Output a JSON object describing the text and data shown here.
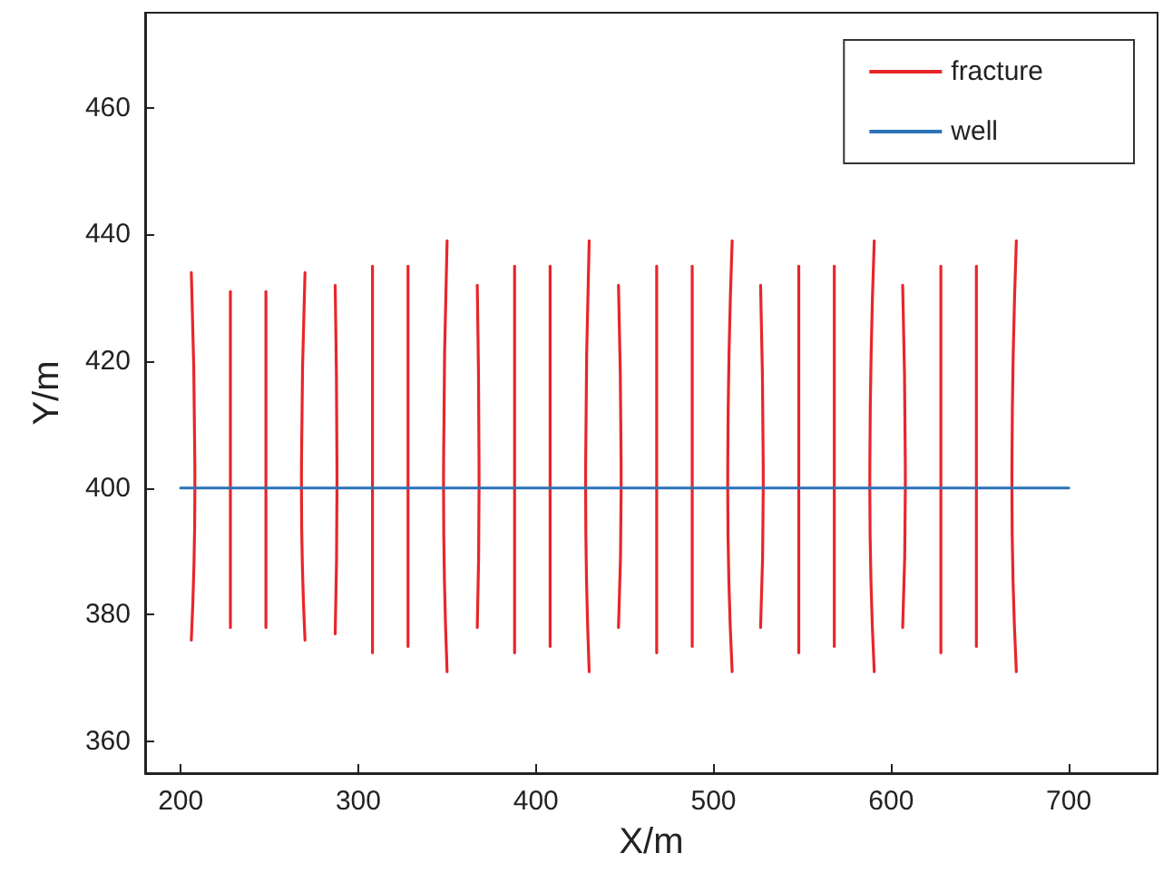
{
  "chart_data": {
    "type": "line",
    "xlabel": "X/m",
    "ylabel": "Y/m",
    "xlim": [
      180,
      750
    ],
    "ylim": [
      355,
      475
    ],
    "xticks": [
      200,
      300,
      400,
      500,
      600,
      700
    ],
    "yticks": [
      360,
      380,
      400,
      420,
      440,
      460
    ],
    "grid": false,
    "legend": "top right",
    "marker": "none",
    "line_style": "solid",
    "series": [
      {
        "name": "fracture",
        "color": "#e8262a",
        "x": [
          206,
          208,
          206
        ],
        "values": [
          434,
          400,
          376
        ]
      },
      {
        "color": "#e8262a",
        "x": [
          228,
          228,
          228
        ],
        "values": [
          431,
          400,
          378
        ]
      },
      {
        "color": "#e8262a",
        "x": [
          248,
          248,
          248
        ],
        "values": [
          431,
          400,
          378
        ]
      },
      {
        "color": "#e8262a",
        "x": [
          270,
          268,
          270
        ],
        "values": [
          434,
          400,
          376
        ]
      },
      {
        "color": "#e8262a",
        "x": [
          287,
          288,
          287
        ],
        "values": [
          432,
          400,
          377
        ]
      },
      {
        "color": "#e8262a",
        "x": [
          308,
          308,
          308
        ],
        "values": [
          435,
          400,
          374
        ]
      },
      {
        "color": "#e8262a",
        "x": [
          328,
          328,
          328
        ],
        "values": [
          435,
          400,
          375
        ]
      },
      {
        "color": "#e8262a",
        "x": [
          350,
          348,
          350
        ],
        "values": [
          439,
          400,
          371
        ]
      },
      {
        "color": "#e8262a",
        "x": [
          367,
          368,
          367
        ],
        "values": [
          432,
          400,
          378
        ]
      },
      {
        "color": "#e8262a",
        "x": [
          388,
          388,
          388
        ],
        "values": [
          435,
          400,
          374
        ]
      },
      {
        "color": "#e8262a",
        "x": [
          408,
          408,
          408
        ],
        "values": [
          435,
          400,
          375
        ]
      },
      {
        "color": "#e8262a",
        "x": [
          430,
          428,
          430
        ],
        "values": [
          439,
          400,
          371
        ]
      },
      {
        "color": "#e8262a",
        "x": [
          446.5,
          448,
          446.5
        ],
        "values": [
          432,
          400,
          378
        ]
      },
      {
        "color": "#e8262a",
        "x": [
          468,
          468,
          468
        ],
        "values": [
          435,
          400,
          374
        ]
      },
      {
        "color": "#e8262a",
        "x": [
          488,
          488,
          488
        ],
        "values": [
          435,
          400,
          375
        ]
      },
      {
        "color": "#e8262a",
        "x": [
          510.5,
          508,
          510.5
        ],
        "values": [
          439,
          400,
          371
        ]
      },
      {
        "color": "#e8262a",
        "x": [
          526.5,
          528,
          526.5
        ],
        "values": [
          432,
          400,
          378
        ]
      },
      {
        "color": "#e8262a",
        "x": [
          548,
          548,
          548
        ],
        "values": [
          435,
          400,
          374
        ]
      },
      {
        "color": "#e8262a",
        "x": [
          568,
          568,
          568
        ],
        "values": [
          435,
          400,
          375
        ]
      },
      {
        "color": "#e8262a",
        "x": [
          590.5,
          588,
          590.5
        ],
        "values": [
          439,
          400,
          371
        ]
      },
      {
        "color": "#e8262a",
        "x": [
          606.5,
          608,
          606.5
        ],
        "values": [
          432,
          400,
          378
        ]
      },
      {
        "color": "#e8262a",
        "x": [
          628,
          628,
          628
        ],
        "values": [
          435,
          400,
          374
        ]
      },
      {
        "color": "#e8262a",
        "x": [
          648,
          648,
          648
        ],
        "values": [
          435,
          400,
          375
        ]
      },
      {
        "color": "#e8262a",
        "x": [
          670.5,
          668,
          670.5
        ],
        "values": [
          439,
          400,
          371
        ]
      },
      {
        "name": "well",
        "color": "#2b72b8",
        "x": [
          200,
          700
        ],
        "values": [
          400,
          400
        ]
      }
    ]
  }
}
